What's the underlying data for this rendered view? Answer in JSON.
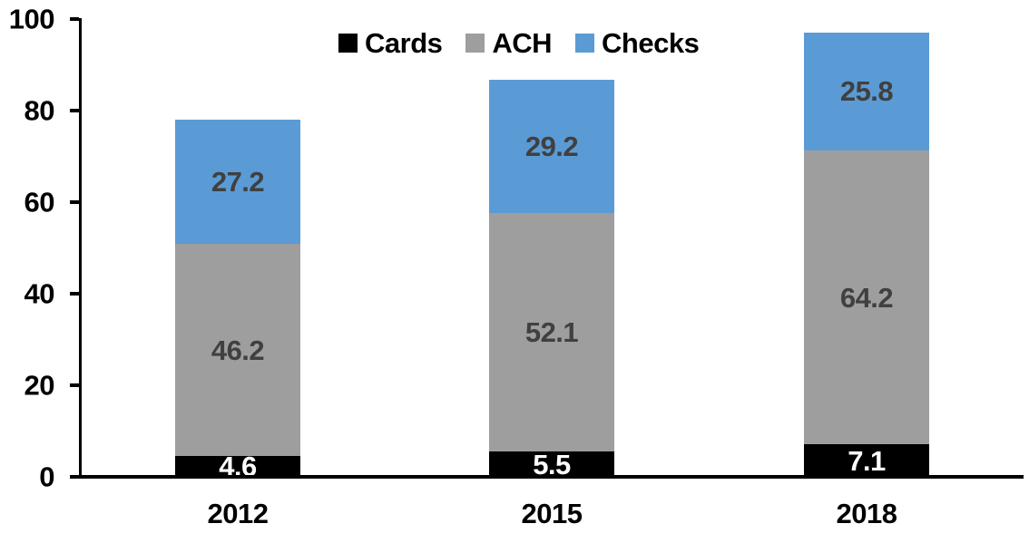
{
  "chart_data": {
    "type": "bar",
    "stacked": true,
    "title": "",
    "xlabel": "",
    "ylabel": "",
    "categories": [
      "2012",
      "2015",
      "2018"
    ],
    "series": [
      {
        "name": "Cards",
        "color": "#000000",
        "label_color": "#FFFFFF",
        "values": [
          4.6,
          5.5,
          7.1
        ]
      },
      {
        "name": "ACH",
        "color": "#9E9E9E",
        "label_color": "#404040",
        "values": [
          46.2,
          52.1,
          64.2
        ]
      },
      {
        "name": "Checks",
        "color": "#5B9BD5",
        "label_color": "#404040",
        "values": [
          27.2,
          29.2,
          25.8
        ]
      }
    ],
    "totals": [
      78.0,
      86.8,
      97.1
    ],
    "ylim": [
      0,
      100
    ],
    "yticks": [
      0,
      20,
      40,
      60,
      80,
      100
    ],
    "grid": "off",
    "legend_position": "top",
    "axis_color": "#000000",
    "tick_label_color": "#000000"
  }
}
